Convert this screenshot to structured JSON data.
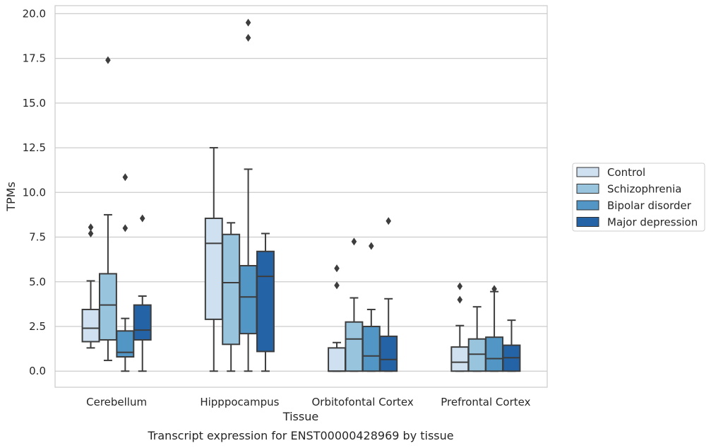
{
  "chart_data": {
    "type": "box",
    "title": "",
    "caption": "Transcript expression for ENST00000428969 by tissue",
    "xlabel": "Tissue",
    "ylabel": "TPMs",
    "ylim": [
      -0.9,
      20.45
    ],
    "yticks": [
      "0.0",
      "2.5",
      "5.0",
      "7.5",
      "10.0",
      "12.5",
      "15.0",
      "17.5",
      "20.0"
    ],
    "ytick_values": [
      0,
      2.5,
      5,
      7.5,
      10,
      12.5,
      15,
      17.5,
      20
    ],
    "grid": "horizontal",
    "legend_position": "right",
    "categories": [
      "Cerebellum",
      "Hipppocampus",
      "Orbitofontal Cortex",
      "Prefrontal Cortex"
    ],
    "series": [
      {
        "name": "Control",
        "color": "#cfe0f0",
        "boxes": [
          {
            "whislo": 1.3,
            "q1": 1.65,
            "median": 2.4,
            "q3": 3.45,
            "whishi": 5.05,
            "fliers": [
              7.7,
              8.05
            ]
          },
          {
            "whislo": 0.0,
            "q1": 2.9,
            "median": 7.15,
            "q3": 8.55,
            "whishi": 12.5,
            "fliers": []
          },
          {
            "whislo": 0.0,
            "q1": 0.0,
            "median": 0.0,
            "q3": 1.3,
            "whishi": 1.6,
            "fliers": [
              4.8,
              5.75
            ]
          },
          {
            "whislo": 0.0,
            "q1": 0.0,
            "median": 0.5,
            "q3": 1.35,
            "whishi": 2.55,
            "fliers": [
              4.0,
              4.75
            ]
          }
        ]
      },
      {
        "name": "Schizophrenia",
        "color": "#99c4de",
        "boxes": [
          {
            "whislo": 0.6,
            "q1": 1.75,
            "median": 3.7,
            "q3": 5.45,
            "whishi": 8.75,
            "fliers": [
              17.4
            ]
          },
          {
            "whislo": 0.0,
            "q1": 1.5,
            "median": 4.95,
            "q3": 7.65,
            "whishi": 8.3,
            "fliers": []
          },
          {
            "whislo": 0.0,
            "q1": 0.0,
            "median": 1.8,
            "q3": 2.75,
            "whishi": 4.1,
            "fliers": [
              7.25
            ]
          },
          {
            "whislo": 0.0,
            "q1": 0.0,
            "median": 0.95,
            "q3": 1.8,
            "whishi": 3.6,
            "fliers": []
          }
        ]
      },
      {
        "name": "Bipolar disorder",
        "color": "#5296c5",
        "boxes": [
          {
            "whislo": 0.0,
            "q1": 0.8,
            "median": 1.05,
            "q3": 2.25,
            "whishi": 2.95,
            "fliers": [
              8.0,
              10.85
            ]
          },
          {
            "whislo": 0.0,
            "q1": 2.1,
            "median": 4.15,
            "q3": 5.9,
            "whishi": 11.3,
            "fliers": [
              18.65,
              19.5
            ]
          },
          {
            "whislo": 0.0,
            "q1": 0.0,
            "median": 0.85,
            "q3": 2.5,
            "whishi": 3.45,
            "fliers": [
              7.0
            ]
          },
          {
            "whislo": 0.0,
            "q1": 0.0,
            "median": 0.7,
            "q3": 1.9,
            "whishi": 4.45,
            "fliers": [
              4.6
            ]
          }
        ]
      },
      {
        "name": "Major depression",
        "color": "#2563a7",
        "boxes": [
          {
            "whislo": 0.0,
            "q1": 1.75,
            "median": 2.3,
            "q3": 3.7,
            "whishi": 4.2,
            "fliers": [
              8.55
            ]
          },
          {
            "whislo": 0.0,
            "q1": 1.1,
            "median": 5.3,
            "q3": 6.7,
            "whishi": 7.7,
            "fliers": []
          },
          {
            "whislo": 0.0,
            "q1": 0.0,
            "median": 0.65,
            "q3": 1.95,
            "whishi": 4.05,
            "fliers": [
              8.4
            ]
          },
          {
            "whislo": 0.0,
            "q1": 0.0,
            "median": 0.75,
            "q3": 1.45,
            "whishi": 2.85,
            "fliers": []
          }
        ]
      }
    ]
  }
}
